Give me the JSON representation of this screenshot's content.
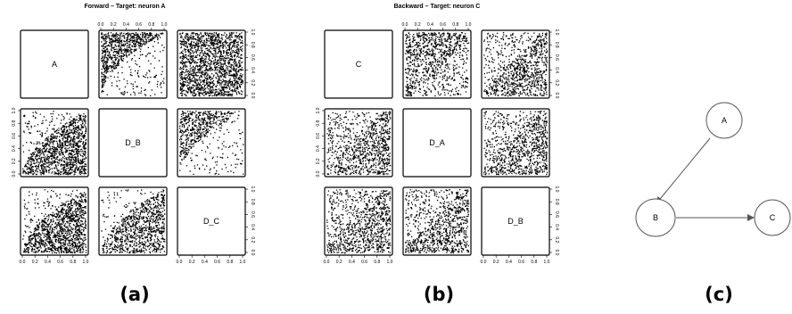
{
  "chart_data": [
    {
      "type": "scatter",
      "subtype": "pairs-matrix",
      "title": "Forward – Target: neuron A",
      "caption": "(a)",
      "variables": [
        "A",
        "D_B",
        "D_C"
      ],
      "ticks": [
        "0.0",
        "0.2",
        "0.4",
        "0.6",
        "0.8",
        "1.0"
      ],
      "xlim": [
        0,
        1
      ],
      "ylim": [
        0,
        1
      ],
      "cells": [
        {
          "row": 0,
          "col": 1,
          "pattern": "upper-left-curve",
          "density": "high"
        },
        {
          "row": 0,
          "col": 2,
          "pattern": "uniform",
          "density": "high"
        },
        {
          "row": 1,
          "col": 0,
          "pattern": "lower-right-curve",
          "density": "high"
        },
        {
          "row": 1,
          "col": 2,
          "pattern": "upper-left-curve",
          "density": "medium"
        },
        {
          "row": 2,
          "col": 0,
          "pattern": "lower-right-curve",
          "density": "high"
        },
        {
          "row": 2,
          "col": 1,
          "pattern": "lower-right-curve",
          "density": "medium"
        }
      ]
    },
    {
      "type": "scatter",
      "subtype": "pairs-matrix",
      "title": "Backward – Target: neuron C",
      "caption": "(b)",
      "variables": [
        "C",
        "D_A",
        "D_B"
      ],
      "ticks": [
        "0.0",
        "0.2",
        "0.4",
        "0.6",
        "0.8",
        "1.0"
      ],
      "xlim": [
        0,
        1
      ],
      "ylim": [
        0,
        1
      ],
      "cells": [
        {
          "row": 0,
          "col": 1,
          "pattern": "upper-left-band",
          "density": "medium"
        },
        {
          "row": 0,
          "col": 2,
          "pattern": "lower-right-band",
          "density": "medium"
        },
        {
          "row": 1,
          "col": 0,
          "pattern": "lower-right-band",
          "density": "medium"
        },
        {
          "row": 1,
          "col": 2,
          "pattern": "lower-right-band",
          "density": "medium"
        },
        {
          "row": 2,
          "col": 0,
          "pattern": "lower-right-band",
          "density": "medium"
        },
        {
          "row": 2,
          "col": 1,
          "pattern": "lower-right-band",
          "density": "medium"
        }
      ]
    }
  ],
  "graph": {
    "caption": "(c)",
    "nodes": [
      "A",
      "B",
      "C"
    ],
    "edges": [
      {
        "from": "A",
        "to": "B"
      },
      {
        "from": "B",
        "to": "C"
      }
    ]
  }
}
